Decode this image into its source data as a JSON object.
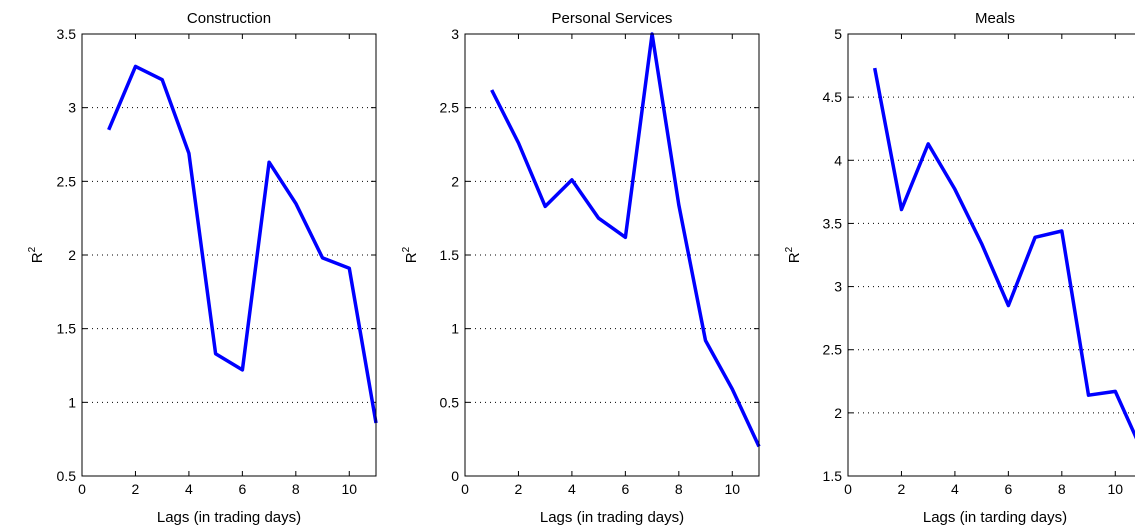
{
  "chart_data": [
    {
      "type": "line",
      "title": "Construction",
      "xlabel": "Lags (in trading days)",
      "ylabel": "R",
      "ylabel_superscript": "2",
      "xlim": [
        0,
        11
      ],
      "ylim": [
        0.5,
        3.5
      ],
      "xticks": [
        "0",
        "2",
        "4",
        "6",
        "8",
        "10"
      ],
      "yticks": [
        "0.5",
        "1",
        "1.5",
        "2",
        "2.5",
        "3",
        "3.5"
      ],
      "grid": "y-dotted",
      "series": [
        {
          "x": [
            1,
            2,
            3,
            4,
            5,
            6,
            7,
            8,
            9,
            10,
            11
          ],
          "y": [
            2.85,
            3.28,
            3.19,
            2.69,
            1.33,
            1.22,
            2.63,
            2.35,
            1.98,
            1.91,
            0.86
          ]
        }
      ]
    },
    {
      "type": "line",
      "title": "Personal Services",
      "xlabel": "Lags (in trading days)",
      "ylabel": "R",
      "ylabel_superscript": "2",
      "xlim": [
        0,
        11
      ],
      "ylim": [
        0,
        3
      ],
      "xticks": [
        "0",
        "2",
        "4",
        "6",
        "8",
        "10"
      ],
      "yticks": [
        "0",
        "0.5",
        "1",
        "1.5",
        "2",
        "2.5",
        "3"
      ],
      "grid": "y-dotted",
      "series": [
        {
          "x": [
            1,
            2,
            3,
            4,
            5,
            6,
            7,
            8,
            9,
            10,
            11
          ],
          "y": [
            2.62,
            2.26,
            1.83,
            2.01,
            1.75,
            1.62,
            3.0,
            1.84,
            0.92,
            0.59,
            0.2
          ]
        }
      ]
    },
    {
      "type": "line",
      "title": "Meals",
      "xlabel": "Lags (in tarding days)",
      "ylabel": "R",
      "ylabel_superscript": "2",
      "xlim": [
        0,
        11
      ],
      "ylim": [
        1.5,
        5
      ],
      "xticks": [
        "0",
        "2",
        "4",
        "6",
        "8",
        "10"
      ],
      "yticks": [
        "1.5",
        "2",
        "2.5",
        "3",
        "3.5",
        "4",
        "4.5",
        "5"
      ],
      "grid": "y-dotted",
      "series": [
        {
          "x": [
            1,
            2,
            3,
            4,
            5,
            6,
            7,
            8,
            9,
            10,
            11
          ],
          "y": [
            4.73,
            3.61,
            4.13,
            3.77,
            3.34,
            2.85,
            3.39,
            3.44,
            2.14,
            2.17,
            1.7
          ]
        }
      ]
    }
  ]
}
